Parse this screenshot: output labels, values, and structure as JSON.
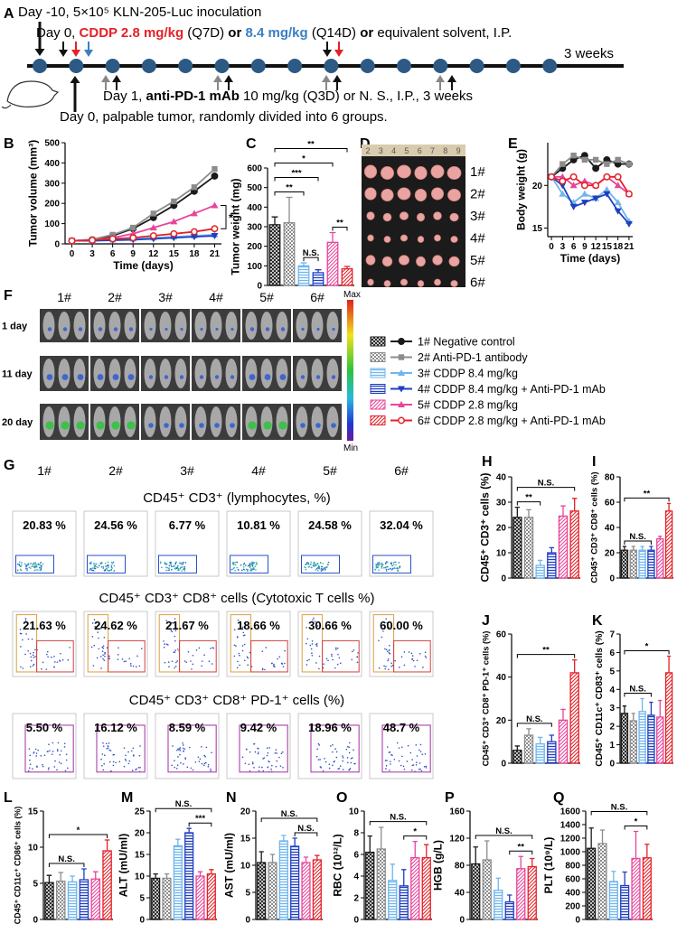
{
  "panel_labels": [
    "A",
    "B",
    "C",
    "D",
    "E",
    "F",
    "G",
    "H",
    "I",
    "J",
    "K",
    "L",
    "M",
    "N",
    "O",
    "P",
    "Q"
  ],
  "timeline": {
    "line1": "Day -10, 5×10⁵ KLN-205-Luc inoculation",
    "line2": [
      "Day 0, ",
      "CDDP 2.8 mg/kg",
      " (Q7D) ",
      "or ",
      "8.4 mg/kg",
      " (Q14D) ",
      "or",
      " equivalent solvent, I.P."
    ],
    "weeks": "3 weeks",
    "line3": [
      "Day 1, ",
      "anti-PD-1 mAb",
      " 10 mg/kg (Q3D) or N. S., I.P., 3 weeks"
    ],
    "line4": "Day 0, palpable tumor, randomly divided into 6 groups."
  },
  "groups": {
    "names": [
      "1# Negative control",
      "2# Anti-PD-1 antibody",
      "3# CDDP 8.4 mg/kg",
      "4# CDDP 8.4 mg/kg + Anti-PD-1 mAb",
      "5# CDDP 2.8 mg/kg",
      "6# CDDP 2.8 mg/kg + Anti-PD-1 mAb"
    ],
    "colors": [
      "#1a1a1a",
      "#8c8c8c",
      "#6fb6ee",
      "#1f3fbf",
      "#e8459a",
      "#e32228"
    ]
  },
  "photo": {
    "ruler": [
      "2",
      "3",
      "4",
      "5",
      "6",
      "7",
      "8",
      "9"
    ],
    "rows": [
      "1#",
      "2#",
      "3#",
      "4#",
      "5#",
      "6#"
    ]
  },
  "imaging": {
    "columns": [
      "1#",
      "2#",
      "3#",
      "4#",
      "5#",
      "6#"
    ],
    "rows": [
      "1 day",
      "11 day",
      "20 day"
    ],
    "max": "Max",
    "min": "Min"
  },
  "flow": {
    "columns": [
      "1#",
      "2#",
      "3#",
      "4#",
      "5#",
      "6#"
    ],
    "panels": [
      {
        "title": "CD45⁺ CD3⁺ (lymphocytes, %)",
        "values": [
          "20.83 %",
          "24.56 %",
          "6.77 %",
          "10.81 %",
          "24.58 %",
          "32.04 %"
        ]
      },
      {
        "title": "CD45⁺ CD3⁺ CD8⁺ cells (Cytotoxic T cells %)",
        "values": [
          "21.63 %",
          "24.62 %",
          "21.67 %",
          "18.66 %",
          "30.66 %",
          "60.00 %"
        ]
      },
      {
        "title": "CD45⁺ CD3⁺ CD8⁺ PD-1⁺ cells (%)",
        "values": [
          "5.50 %",
          "16.12 %",
          "8.59 %",
          "9.42 %",
          "18.96 %",
          "48.7 %"
        ]
      }
    ]
  },
  "chart_data": [
    {
      "type": "line",
      "y_label": "Tumor volume (mm³)",
      "x_label": "Time (days)",
      "x": [
        0,
        3,
        6,
        9,
        12,
        15,
        18,
        21
      ],
      "xlim": [
        -1,
        22
      ],
      "xticks": [
        0,
        3,
        6,
        9,
        12,
        15,
        18,
        21
      ],
      "ylim": [
        0,
        500
      ],
      "yticks": [
        0,
        100,
        200,
        300,
        400,
        500
      ],
      "series": [
        {
          "color": "#1a1a1a",
          "values": [
            15,
            20,
            40,
            75,
            130,
            190,
            260,
            335
          ]
        },
        {
          "color": "#8c8c8c",
          "values": [
            15,
            22,
            45,
            80,
            150,
            210,
            280,
            370
          ]
        },
        {
          "color": "#6fb6ee",
          "values": [
            15,
            15,
            20,
            25,
            30,
            35,
            40,
            45
          ]
        },
        {
          "color": "#1f3fbf",
          "values": [
            15,
            15,
            18,
            20,
            25,
            30,
            35,
            40
          ]
        },
        {
          "color": "#e8459a",
          "values": [
            15,
            18,
            30,
            50,
            80,
            110,
            150,
            190
          ]
        },
        {
          "color": "#e32228",
          "values": [
            15,
            18,
            25,
            30,
            40,
            50,
            60,
            75
          ]
        }
      ],
      "annotations": [
        {
          "text": "*",
          "series": [
            4,
            5
          ]
        }
      ]
    },
    {
      "type": "bar",
      "y_label": "Tumor weight (mg)",
      "ylim": [
        0,
        600
      ],
      "yticks": [
        0,
        100,
        200,
        300,
        400,
        500,
        600
      ],
      "values": [
        310,
        320,
        100,
        65,
        220,
        85
      ],
      "errors": [
        40,
        130,
        15,
        15,
        50,
        12
      ],
      "annotations": [
        {
          "text": "N.S.",
          "bars": [
            2,
            3
          ]
        },
        {
          "text": "**",
          "bars": [
            4,
            5
          ]
        },
        {
          "text": "**",
          "bars": [
            0,
            2
          ]
        },
        {
          "text": "***",
          "bars": [
            0,
            3
          ]
        },
        {
          "text": "*",
          "bars": [
            0,
            4
          ]
        },
        {
          "text": "**",
          "bars": [
            0,
            5
          ]
        }
      ]
    },
    {
      "type": "line",
      "y_label": "Body weight (g)",
      "x_label": "Time (days)",
      "x": [
        0,
        3,
        6,
        9,
        12,
        15,
        18,
        21
      ],
      "xlim": [
        -1,
        22
      ],
      "xticks": [
        0,
        3,
        6,
        9,
        12,
        15,
        18,
        21
      ],
      "ylim": [
        14,
        25
      ],
      "yticks": [
        15,
        20
      ],
      "series": [
        {
          "color": "#1a1a1a",
          "values": [
            21,
            22,
            23,
            23.5,
            22,
            23,
            22.5,
            22.5
          ]
        },
        {
          "color": "#8c8c8c",
          "values": [
            21,
            22.5,
            23.5,
            23,
            23,
            22.5,
            23,
            22.5
          ]
        },
        {
          "color": "#6fb6ee",
          "values": [
            21,
            19,
            18,
            19,
            18.5,
            19.5,
            18,
            15.8
          ]
        },
        {
          "color": "#1f3fbf",
          "values": [
            21,
            20,
            17.5,
            18,
            18.5,
            19,
            17,
            15.5
          ]
        },
        {
          "color": "#e8459a",
          "values": [
            21,
            21,
            20,
            20.5,
            20,
            21,
            20,
            19
          ]
        },
        {
          "color": "#e32228",
          "values": [
            21,
            20.5,
            21,
            20,
            20,
            21,
            21,
            19
          ]
        }
      ]
    },
    {
      "type": "bar",
      "y_label": "CD45⁺ CD3⁺ cells (%)",
      "ylim": [
        0,
        40
      ],
      "yticks": [
        0,
        10,
        20,
        30,
        40
      ],
      "values": [
        24,
        24,
        5,
        10,
        24.5,
        26.5
      ],
      "errors": [
        4,
        3,
        2,
        2,
        4,
        5
      ],
      "annotations": [
        {
          "text": "**",
          "bars": [
            0,
            2
          ]
        },
        {
          "text": "N.S.",
          "bars": [
            0,
            5
          ]
        }
      ]
    },
    {
      "type": "bar",
      "y_label": "CD45⁺ CD3⁺ CD8⁺ cells (%)",
      "ylim": [
        0,
        80
      ],
      "yticks": [
        0,
        20,
        40,
        60,
        80
      ],
      "values": [
        22,
        22,
        22,
        22,
        31,
        53
      ],
      "errors": [
        3,
        3,
        3,
        3,
        2,
        6
      ],
      "annotations": [
        {
          "text": "N.S.",
          "bars": [
            0,
            3
          ]
        },
        {
          "text": "**",
          "bars": [
            0,
            5
          ]
        }
      ]
    },
    {
      "type": "bar",
      "y_label": "CD45⁺ CD3⁺ CD8⁺ PD-1⁺ cells (%)",
      "ylim": [
        0,
        60
      ],
      "yticks": [
        0,
        20,
        40,
        60
      ],
      "values": [
        6,
        13,
        9,
        10,
        20,
        42
      ],
      "errors": [
        2,
        3,
        3,
        3,
        5,
        6
      ],
      "annotations": [
        {
          "text": "N.S.",
          "bars": [
            0,
            3
          ]
        },
        {
          "text": "**",
          "bars": [
            0,
            5
          ]
        }
      ]
    },
    {
      "type": "bar",
      "y_label": "CD45⁺ CD11c⁺ CD83⁺ cells (%)",
      "ylim": [
        0,
        7
      ],
      "yticks": [
        0,
        1,
        2,
        3,
        4,
        5,
        6,
        7
      ],
      "values": [
        2.7,
        2.3,
        2.8,
        2.6,
        2.5,
        4.9
      ],
      "errors": [
        0.4,
        0.4,
        0.7,
        0.7,
        0.9,
        0.9
      ],
      "annotations": [
        {
          "text": "N.S.",
          "bars": [
            0,
            3
          ]
        },
        {
          "text": "*",
          "bars": [
            0,
            5
          ]
        }
      ]
    },
    {
      "type": "bar",
      "y_label": "CD45⁺ CD11c⁺ CD86⁺ cells (%)",
      "ylim": [
        0,
        15
      ],
      "yticks": [
        0,
        5,
        10,
        15
      ],
      "values": [
        5.1,
        5.3,
        5.2,
        5.5,
        5.6,
        9.5
      ],
      "errors": [
        1,
        1.2,
        0.8,
        1.5,
        1,
        1.5
      ],
      "annotations": [
        {
          "text": "N.S.",
          "bars": [
            0,
            3
          ]
        },
        {
          "text": "*",
          "bars": [
            0,
            5
          ]
        }
      ]
    },
    {
      "type": "bar",
      "y_label": "ALT (mU/ml)",
      "ylim": [
        0,
        25
      ],
      "yticks": [
        0,
        5,
        10,
        15,
        20,
        25
      ],
      "values": [
        9.5,
        9.5,
        17,
        20,
        10,
        10.5
      ],
      "errors": [
        1,
        1,
        1.5,
        1,
        1,
        1
      ],
      "annotations": [
        {
          "text": "***",
          "bars": [
            3,
            5
          ]
        },
        {
          "text": "N.S.",
          "bars": [
            0,
            5
          ]
        }
      ]
    },
    {
      "type": "bar",
      "y_label": "AST (mU/ml)",
      "ylim": [
        0,
        20
      ],
      "yticks": [
        0,
        5,
        10,
        15,
        20
      ],
      "values": [
        10.5,
        10.5,
        14.5,
        13.5,
        10.5,
        11
      ],
      "errors": [
        2,
        1.5,
        1,
        1.5,
        1,
        0.8
      ],
      "annotations": [
        {
          "text": "N.S.",
          "bars": [
            3,
            5
          ]
        },
        {
          "text": "N.S.",
          "bars": [
            0,
            5
          ]
        }
      ]
    },
    {
      "type": "bar",
      "y_label": "RBC (10¹²/L)",
      "ylim": [
        0,
        10
      ],
      "yticks": [
        0,
        2,
        4,
        6,
        8,
        10
      ],
      "values": [
        6.2,
        6.5,
        3.6,
        3.1,
        5.7,
        5.7
      ],
      "errors": [
        1.5,
        2,
        1.5,
        1.5,
        1.5,
        1.2
      ],
      "annotations": [
        {
          "text": "*",
          "bars": [
            3,
            5
          ]
        },
        {
          "text": "N.S.",
          "bars": [
            0,
            5
          ]
        }
      ]
    },
    {
      "type": "bar",
      "y_label": "HGB (g/L)",
      "ylim": [
        0,
        160
      ],
      "yticks": [
        0,
        40,
        80,
        120,
        160
      ],
      "values": [
        82,
        88,
        43,
        26,
        75,
        78
      ],
      "errors": [
        25,
        28,
        18,
        10,
        18,
        12
      ],
      "annotations": [
        {
          "text": "**",
          "bars": [
            3,
            5
          ]
        },
        {
          "text": "N.S.",
          "bars": [
            0,
            5
          ]
        }
      ]
    },
    {
      "type": "bar",
      "y_label": "PLT (10⁹/L)",
      "ylim": [
        0,
        1600
      ],
      "yticks": [
        0,
        200,
        400,
        600,
        800,
        1000,
        1200,
        1400,
        1600
      ],
      "values": [
        1050,
        1120,
        560,
        500,
        900,
        910
      ],
      "errors": [
        300,
        200,
        150,
        200,
        400,
        200
      ],
      "annotations": [
        {
          "text": "*",
          "bars": [
            3,
            5
          ]
        },
        {
          "text": "N.S.",
          "bars": [
            0,
            5
          ]
        }
      ]
    }
  ]
}
